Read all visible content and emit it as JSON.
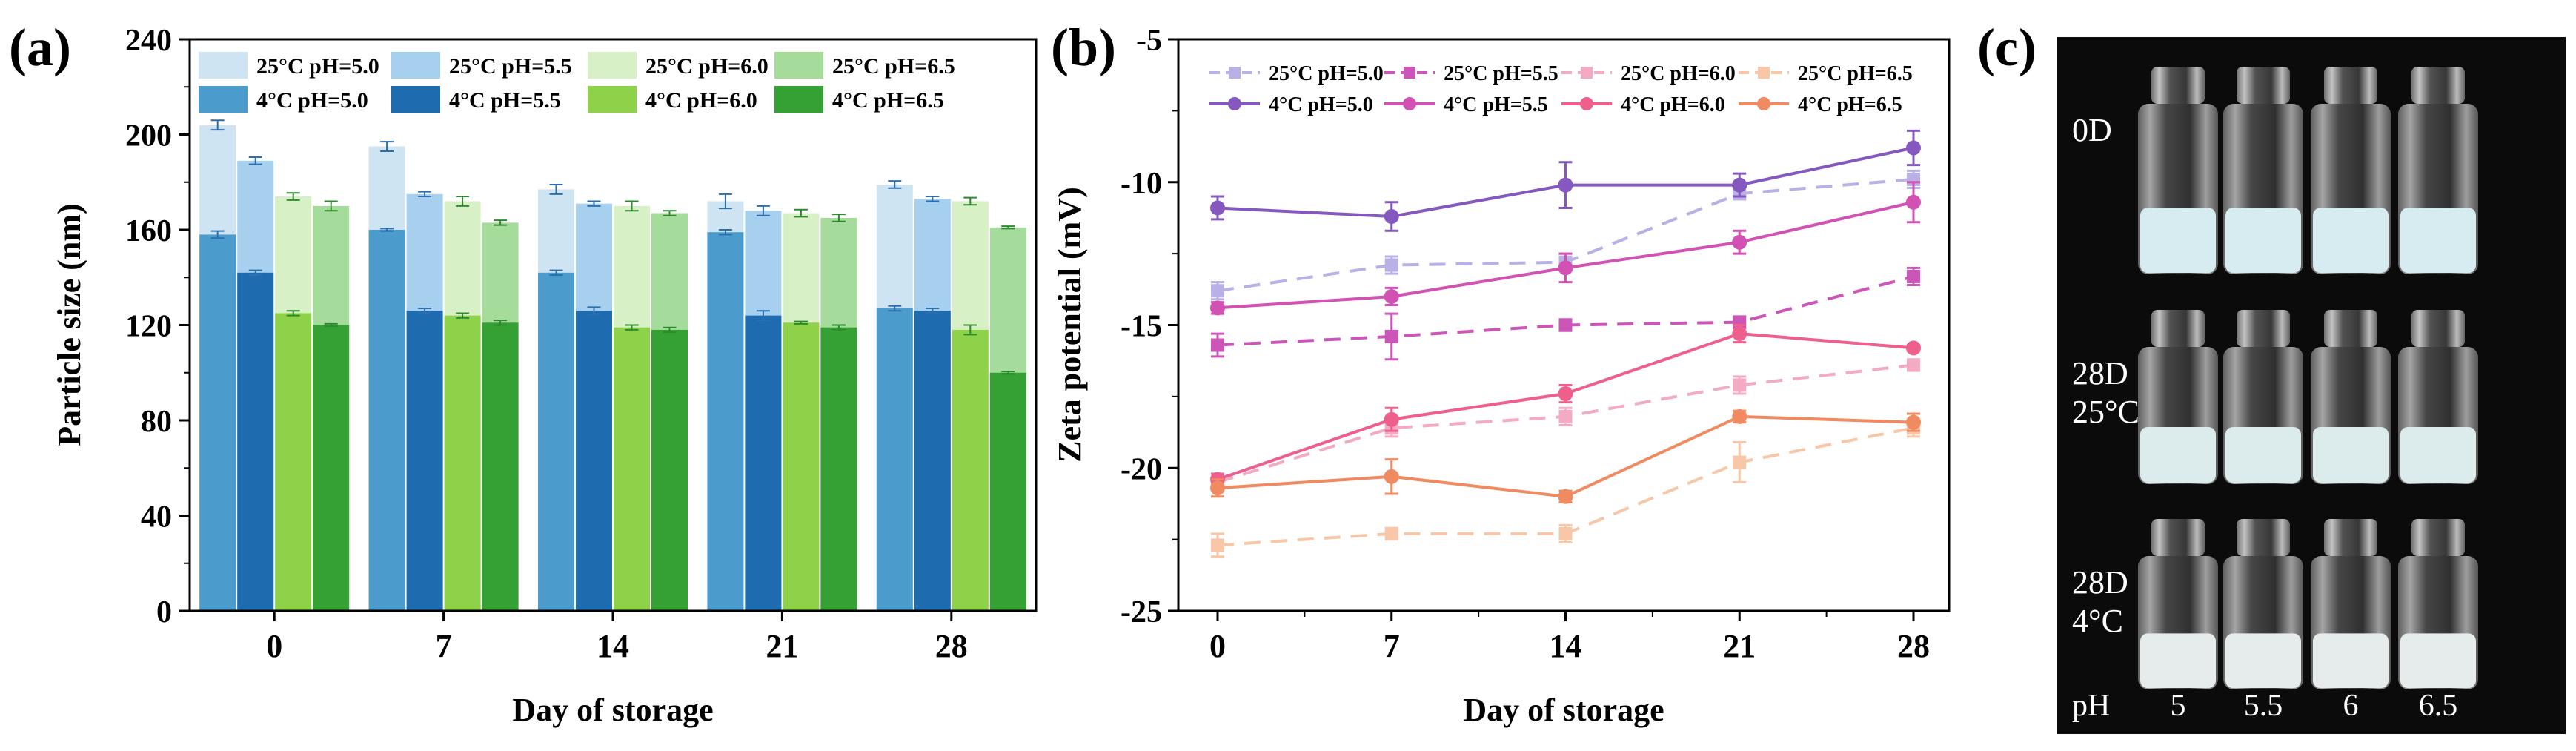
{
  "panel_labels": {
    "a": "(a)",
    "b": "(b)",
    "c": "(c)"
  },
  "chart_data": [
    {
      "type": "bar",
      "xlabel": "Day of storage",
      "ylabel": "Particle size (nm)",
      "ylim": [
        0,
        240
      ],
      "yticks": [
        0,
        40,
        80,
        120,
        160,
        200,
        240
      ],
      "categories": [
        "0",
        "7",
        "14",
        "21",
        "28"
      ],
      "legend_position": "top",
      "series": [
        {
          "name": "25°C pH=5.0",
          "group": "25C",
          "color": "#cfe4f3",
          "values": [
            204,
            195,
            177,
            172,
            179
          ],
          "errors": [
            2,
            2,
            2,
            3,
            1.5
          ]
        },
        {
          "name": "25°C pH=5.5",
          "group": "25C",
          "color": "#a7d0ee",
          "values": [
            189,
            175,
            171,
            168,
            173
          ],
          "errors": [
            1.5,
            1,
            1,
            2,
            1
          ]
        },
        {
          "name": "25°C pH=6.0",
          "group": "25C",
          "color": "#d8f0c6",
          "values": [
            174,
            172,
            170,
            167,
            172
          ],
          "errors": [
            1.5,
            2,
            2,
            1.5,
            1.5
          ]
        },
        {
          "name": "25°C pH=6.5",
          "group": "25C",
          "color": "#a6dc9b",
          "values": [
            170,
            163,
            167,
            165,
            161
          ],
          "errors": [
            2,
            1,
            1,
            1.5,
            0.5
          ]
        },
        {
          "name": "4°C pH=5.0",
          "group": "4C",
          "color": "#4b9bcd",
          "values": [
            158,
            160,
            142,
            159,
            127
          ],
          "errors": [
            1.5,
            0.5,
            1,
            1,
            1
          ]
        },
        {
          "name": "4°C pH=5.5",
          "group": "4C",
          "color": "#1f6bb0",
          "values": [
            142,
            126,
            126,
            124,
            126
          ],
          "errors": [
            1,
            1,
            1.5,
            2,
            1
          ]
        },
        {
          "name": "4°C pH=6.0",
          "group": "4C",
          "color": "#8ed24a",
          "values": [
            125,
            124,
            119,
            121,
            118
          ],
          "errors": [
            1,
            1,
            1,
            0.5,
            2
          ]
        },
        {
          "name": "4°C pH=6.5",
          "group": "4C",
          "color": "#35a134",
          "values": [
            120,
            121,
            118,
            119,
            100
          ],
          "errors": [
            0.5,
            1,
            1,
            1,
            0.5
          ]
        }
      ]
    },
    {
      "type": "line",
      "xlabel": "Day of storage",
      "ylabel": "Zeta potential (mV)",
      "ylim": [
        -25,
        -5
      ],
      "yticks": [
        -25,
        -20,
        -15,
        -10,
        -5
      ],
      "x": [
        0,
        7,
        14,
        21,
        28
      ],
      "xticks": [
        "0",
        "7",
        "14",
        "21",
        "28"
      ],
      "legend_position": "top-left",
      "series": [
        {
          "name": "25°C pH=5.0",
          "color": "#b9b0e6",
          "style": "dashed",
          "marker": "square",
          "values": [
            -13.8,
            -12.9,
            -12.8,
            -10.4,
            -9.9
          ],
          "errors": [
            0.3,
            0.3,
            0.3,
            0.2,
            0.3
          ]
        },
        {
          "name": "25°C pH=5.5",
          "color": "#cc56b8",
          "style": "dashed",
          "marker": "square",
          "values": [
            -15.7,
            -15.4,
            -15.0,
            -14.9,
            -13.3
          ],
          "errors": [
            0.4,
            0.8,
            0.2,
            0.2,
            0.3
          ]
        },
        {
          "name": "25°C pH=6.0",
          "color": "#f3aac3",
          "style": "dashed",
          "marker": "square",
          "values": [
            -20.5,
            -18.6,
            -18.2,
            -17.1,
            -16.4
          ],
          "errors": [
            0.3,
            0.3,
            0.3,
            0.3,
            0.2
          ]
        },
        {
          "name": "25°C pH=6.5",
          "color": "#f8c7a8",
          "style": "dashed",
          "marker": "square",
          "values": [
            -22.7,
            -22.3,
            -22.3,
            -19.8,
            -18.6
          ],
          "errors": [
            0.4,
            0.2,
            0.3,
            0.7,
            0.3
          ]
        },
        {
          "name": "4°C pH=5.0",
          "color": "#8458bf",
          "style": "solid",
          "marker": "circle",
          "values": [
            -10.9,
            -11.2,
            -10.1,
            -10.1,
            -8.8
          ],
          "errors": [
            0.4,
            0.5,
            0.8,
            0.4,
            0.6
          ]
        },
        {
          "name": "4°C pH=5.5",
          "color": "#d252b3",
          "style": "solid",
          "marker": "circle",
          "values": [
            -14.4,
            -14.0,
            -13.0,
            -12.1,
            -10.7
          ],
          "errors": [
            0.2,
            0.3,
            0.5,
            0.4,
            0.7
          ]
        },
        {
          "name": "4°C pH=6.0",
          "color": "#ef5f8c",
          "style": "solid",
          "marker": "circle",
          "values": [
            -20.4,
            -18.3,
            -17.4,
            -15.3,
            -15.8
          ],
          "errors": [
            0.2,
            0.4,
            0.3,
            0.3,
            0.1
          ]
        },
        {
          "name": "4°C pH=6.5",
          "color": "#f08a60",
          "style": "solid",
          "marker": "circle",
          "values": [
            -20.7,
            -20.3,
            -21.0,
            -18.2,
            -18.4
          ],
          "errors": [
            0.3,
            0.6,
            0.2,
            0.2,
            0.3
          ]
        }
      ]
    }
  ],
  "photo": {
    "rows": [
      {
        "label_lines": [
          "0D"
        ],
        "liquid_color": "#d6ecf1"
      },
      {
        "label_lines": [
          "28D",
          "25°C"
        ],
        "liquid_color": "#dcebeb"
      },
      {
        "label_lines": [
          "28D",
          "4°C"
        ],
        "liquid_color": "#e6ebeb"
      }
    ],
    "ph_label": "pH",
    "ph_values": [
      "5",
      "5.5",
      "6",
      "6.5"
    ]
  }
}
